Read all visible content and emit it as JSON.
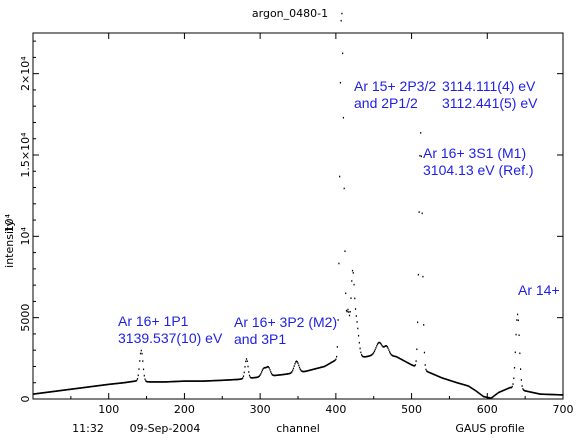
{
  "chart_data": {
    "type": "scatter",
    "title": "argon_0480-1",
    "xlabel": "channel",
    "ylabel": "intensity",
    "ylabel_exponent": "10⁴",
    "xlim": [
      0,
      700
    ],
    "ylim": [
      0,
      22500
    ],
    "x_ticks": [
      100,
      200,
      300,
      400,
      500,
      600,
      700
    ],
    "x_tick_labels": [
      "100",
      "200",
      "300",
      "400",
      "500",
      "600",
      "700"
    ],
    "y_ticks": [
      0,
      5000,
      10000,
      15000,
      20000
    ],
    "y_tick_labels": [
      "0",
      "5000",
      "10⁴",
      "1.5×10⁴",
      "2×10⁴"
    ],
    "footer": {
      "time": "11:32",
      "date": "09-Sep-2004",
      "fit": "GAUS profile"
    },
    "baseline": [
      [
        0,
        300
      ],
      [
        25,
        450
      ],
      [
        50,
        600
      ],
      [
        75,
        750
      ],
      [
        100,
        900
      ],
      [
        120,
        1000
      ],
      [
        135,
        1100
      ],
      [
        155,
        1050
      ],
      [
        175,
        1050
      ],
      [
        200,
        1100
      ],
      [
        225,
        1100
      ],
      [
        250,
        1150
      ],
      [
        270,
        1200
      ],
      [
        300,
        1350
      ],
      [
        330,
        1500
      ],
      [
        360,
        1700
      ],
      [
        385,
        2000
      ],
      [
        400,
        2400
      ],
      [
        440,
        2600
      ],
      [
        460,
        2800
      ],
      [
        480,
        2600
      ],
      [
        500,
        2100
      ],
      [
        520,
        1700
      ],
      [
        540,
        1300
      ],
      [
        560,
        1000
      ],
      [
        575,
        800
      ],
      [
        585,
        500
      ],
      [
        595,
        150
      ],
      [
        605,
        50
      ],
      [
        615,
        400
      ],
      [
        630,
        700
      ],
      [
        650,
        500
      ],
      [
        670,
        300
      ],
      [
        700,
        250
      ]
    ],
    "peaks": [
      {
        "center": 143,
        "height": 1900,
        "sigma": 2.2
      },
      {
        "center": 282,
        "height": 1200,
        "sigma": 2.0
      },
      {
        "center": 305,
        "height": 500,
        "sigma": 3.0
      },
      {
        "center": 311,
        "height": 500,
        "sigma": 2.5
      },
      {
        "center": 348,
        "height": 700,
        "sigma": 3.0
      },
      {
        "center": 407,
        "height": 17900,
        "sigma": 2.0
      },
      {
        "center": 410,
        "height": 9000,
        "sigma": 2.0
      },
      {
        "center": 416,
        "height": 2800,
        "sigma": 2.0
      },
      {
        "center": 422,
        "height": 4800,
        "sigma": 2.2
      },
      {
        "center": 427,
        "height": 2200,
        "sigma": 3.0
      },
      {
        "center": 457,
        "height": 700,
        "sigma": 4.0
      },
      {
        "center": 467,
        "height": 500,
        "sigma": 3.0
      },
      {
        "center": 512,
        "height": 14500,
        "sigma": 2.2
      },
      {
        "center": 640,
        "height": 4600,
        "sigma": 2.5
      }
    ],
    "annotations": [
      {
        "lines": [
          "Ar 16+ 1P1",
          "3139.537(10) eV"
        ]
      },
      {
        "lines": [
          "Ar 16+ 3P2 (M2)",
          "and 3P1"
        ]
      },
      {
        "lines": [
          "Ar 15+ 2P3/2",
          "and 2P1/2"
        ]
      },
      {
        "lines": [
          "3114.111(4) eV",
          "3112.441(5) eV"
        ]
      },
      {
        "lines": [
          "Ar 16+ 3S1 (M1)",
          "3104.13 eV (Ref.)"
        ]
      },
      {
        "lines": [
          "Ar 14+"
        ]
      }
    ],
    "colors": {
      "data": "#000000",
      "annotation": "#1f1fe6",
      "axes": "#000000"
    },
    "grid": false
  }
}
